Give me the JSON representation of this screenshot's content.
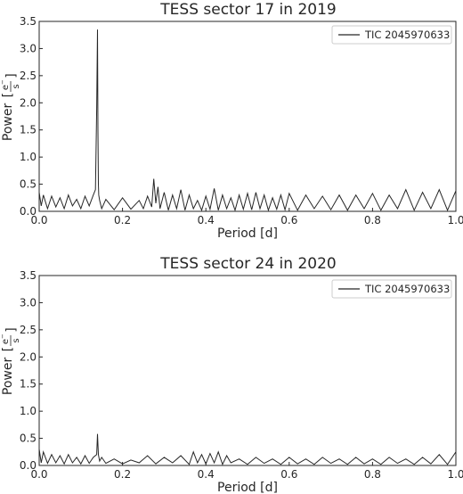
{
  "chart_data": [
    {
      "type": "line",
      "title": "TESS sector 17 in 2019",
      "xlabel": "Period [d]",
      "ylabel": "Power",
      "ylabel_unit_num": "e",
      "ylabel_unit_num_sup": "−",
      "ylabel_unit_den": "s",
      "xlim": [
        0.0,
        1.0
      ],
      "ylim": [
        0.0,
        3.5
      ],
      "x_ticks": [
        "0.0",
        "0.2",
        "0.4",
        "0.6",
        "0.8",
        "1.0"
      ],
      "y_ticks": [
        "0.0",
        "0.5",
        "1.0",
        "1.5",
        "2.0",
        "2.5",
        "3.0",
        "3.5"
      ],
      "legend_position": "top-right",
      "series": [
        {
          "name": "TIC 2045970633",
          "color": "#262626",
          "x": [
            0.0,
            0.005,
            0.01,
            0.02,
            0.03,
            0.04,
            0.05,
            0.06,
            0.07,
            0.08,
            0.09,
            0.1,
            0.11,
            0.12,
            0.13,
            0.135,
            0.138,
            0.14,
            0.141,
            0.142,
            0.143,
            0.145,
            0.15,
            0.16,
            0.18,
            0.2,
            0.22,
            0.24,
            0.25,
            0.26,
            0.27,
            0.275,
            0.28,
            0.285,
            0.29,
            0.3,
            0.31,
            0.32,
            0.33,
            0.34,
            0.35,
            0.36,
            0.37,
            0.38,
            0.39,
            0.4,
            0.41,
            0.42,
            0.43,
            0.44,
            0.45,
            0.46,
            0.47,
            0.48,
            0.49,
            0.5,
            0.51,
            0.52,
            0.53,
            0.54,
            0.55,
            0.56,
            0.57,
            0.58,
            0.59,
            0.6,
            0.62,
            0.64,
            0.66,
            0.68,
            0.7,
            0.72,
            0.74,
            0.76,
            0.78,
            0.8,
            0.82,
            0.84,
            0.86,
            0.88,
            0.9,
            0.92,
            0.94,
            0.96,
            0.98,
            1.0
          ],
          "y": [
            0.35,
            0.1,
            0.3,
            0.05,
            0.28,
            0.08,
            0.25,
            0.05,
            0.3,
            0.1,
            0.22,
            0.05,
            0.28,
            0.1,
            0.3,
            0.4,
            1.9,
            3.35,
            1.5,
            0.5,
            0.3,
            0.2,
            0.05,
            0.22,
            0.03,
            0.25,
            0.04,
            0.2,
            0.05,
            0.28,
            0.08,
            0.6,
            0.15,
            0.45,
            0.05,
            0.35,
            0.02,
            0.3,
            0.05,
            0.4,
            0.02,
            0.3,
            0.05,
            0.2,
            0.02,
            0.28,
            0.04,
            0.42,
            0.02,
            0.3,
            0.05,
            0.25,
            0.02,
            0.3,
            0.04,
            0.33,
            0.03,
            0.35,
            0.05,
            0.3,
            0.02,
            0.25,
            0.04,
            0.3,
            0.03,
            0.33,
            0.02,
            0.3,
            0.05,
            0.28,
            0.03,
            0.3,
            0.02,
            0.3,
            0.05,
            0.33,
            0.02,
            0.3,
            0.05,
            0.4,
            0.02,
            0.35,
            0.05,
            0.4,
            0.02,
            0.38
          ]
        }
      ]
    },
    {
      "type": "line",
      "title": "TESS sector 24 in 2020",
      "xlabel": "Period [d]",
      "ylabel": "Power",
      "ylabel_unit_num": "e",
      "ylabel_unit_num_sup": "−",
      "ylabel_unit_den": "s",
      "xlim": [
        0.0,
        1.0
      ],
      "ylim": [
        0.0,
        3.5
      ],
      "x_ticks": [
        "0.0",
        "0.2",
        "0.4",
        "0.6",
        "0.8",
        "1.0"
      ],
      "y_ticks": [
        "0.0",
        "0.5",
        "1.0",
        "1.5",
        "2.0",
        "2.5",
        "3.0",
        "3.5"
      ],
      "legend_position": "top-right",
      "series": [
        {
          "name": "TIC 2045970633",
          "color": "#262626",
          "x": [
            0.0,
            0.005,
            0.01,
            0.02,
            0.03,
            0.04,
            0.05,
            0.06,
            0.07,
            0.08,
            0.09,
            0.1,
            0.11,
            0.12,
            0.13,
            0.138,
            0.14,
            0.142,
            0.145,
            0.15,
            0.16,
            0.18,
            0.2,
            0.22,
            0.24,
            0.26,
            0.28,
            0.3,
            0.32,
            0.34,
            0.36,
            0.37,
            0.38,
            0.39,
            0.4,
            0.41,
            0.42,
            0.43,
            0.44,
            0.45,
            0.46,
            0.48,
            0.5,
            0.52,
            0.54,
            0.56,
            0.58,
            0.6,
            0.62,
            0.64,
            0.66,
            0.68,
            0.7,
            0.72,
            0.74,
            0.76,
            0.78,
            0.8,
            0.82,
            0.84,
            0.86,
            0.88,
            0.9,
            0.92,
            0.94,
            0.96,
            0.98,
            1.0
          ],
          "y": [
            0.3,
            0.05,
            0.25,
            0.04,
            0.2,
            0.05,
            0.18,
            0.03,
            0.2,
            0.05,
            0.15,
            0.03,
            0.18,
            0.04,
            0.15,
            0.2,
            0.58,
            0.2,
            0.08,
            0.15,
            0.04,
            0.12,
            0.03,
            0.1,
            0.05,
            0.18,
            0.03,
            0.15,
            0.05,
            0.18,
            0.02,
            0.25,
            0.05,
            0.2,
            0.03,
            0.22,
            0.05,
            0.25,
            0.02,
            0.18,
            0.05,
            0.12,
            0.02,
            0.15,
            0.04,
            0.12,
            0.02,
            0.15,
            0.03,
            0.12,
            0.02,
            0.15,
            0.04,
            0.12,
            0.02,
            0.15,
            0.03,
            0.12,
            0.02,
            0.15,
            0.04,
            0.12,
            0.02,
            0.15,
            0.03,
            0.2,
            0.02,
            0.25
          ]
        }
      ]
    }
  ]
}
